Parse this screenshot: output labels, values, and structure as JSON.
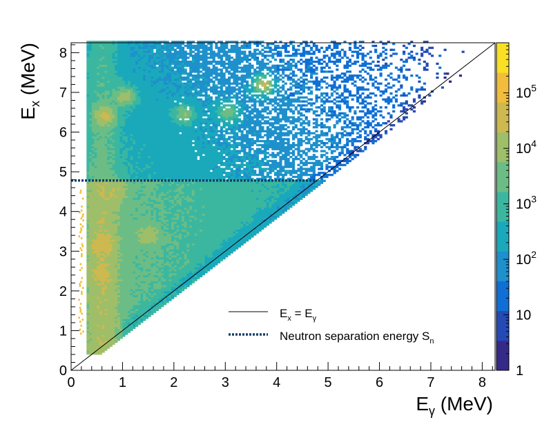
{
  "chart_data": {
    "type": "heatmap",
    "title": "",
    "x_axis": {
      "label_main": "E",
      "label_sub": "γ",
      "label_unit": " (MeV)",
      "range": [
        0,
        8.25
      ],
      "ticks": [
        "0",
        "1",
        "2",
        "3",
        "4",
        "5",
        "6",
        "7",
        "8"
      ]
    },
    "y_axis": {
      "label_main": "E",
      "label_sub": "x",
      "label_unit": " (MeV)",
      "range": [
        0,
        8.25
      ],
      "ticks": [
        "0",
        "1",
        "2",
        "3",
        "4",
        "5",
        "6",
        "7",
        "8"
      ]
    },
    "z_axis": {
      "scale": "log",
      "range": [
        1,
        800000
      ],
      "tick_labels": [
        {
          "base": "1",
          "exp": ""
        },
        {
          "base": "10",
          "exp": ""
        },
        {
          "base": "10",
          "exp": "2"
        },
        {
          "base": "10",
          "exp": "3"
        },
        {
          "base": "10",
          "exp": "4"
        },
        {
          "base": "10",
          "exp": "5"
        }
      ]
    },
    "colors": {
      "palette": [
        "#352a87",
        "#254ab5",
        "#0f6fd5",
        "#1e90cc",
        "#1aa9bb",
        "#3bb7a0",
        "#6cbd85",
        "#9fbe69",
        "#cdb94f",
        "#f1bd3a",
        "#f9e024"
      ],
      "diagonal_line": "#000000",
      "sn_line": "#0d3f6b"
    },
    "lines": {
      "diagonal": {
        "from": [
          0,
          0
        ],
        "to": [
          8.25,
          8.25
        ]
      },
      "neutron_separation_energy_MeV": 4.78
    },
    "data_region": {
      "ex_min": 0.4,
      "eg_min": 0.3,
      "upper_bound": "Ex >= Egamma - 0.1"
    },
    "hotspots": [
      {
        "eg": 0.65,
        "ex": 6.4,
        "level": 4.5
      },
      {
        "eg": 1.05,
        "ex": 6.9,
        "level": 4.2
      },
      {
        "eg": 2.2,
        "ex": 6.45,
        "level": 3.8
      },
      {
        "eg": 3.05,
        "ex": 6.5,
        "level": 3.6
      },
      {
        "eg": 3.75,
        "ex": 7.2,
        "level": 4.3
      },
      {
        "eg": 0.85,
        "ex": 4.5,
        "level": 4.3
      },
      {
        "eg": 0.6,
        "ex": 3.2,
        "level": 4.7
      },
      {
        "eg": 1.5,
        "ex": 3.4,
        "level": 4.2
      },
      {
        "eg": 0.6,
        "ex": 1.3,
        "level": 4.0
      },
      {
        "eg": 0.6,
        "ex": 2.4,
        "level": 4.5
      }
    ],
    "legend": {
      "position": "bottom-right inside plot",
      "entries": [
        {
          "label_main": "E",
          "label_sub1": "x",
          "label_mid": " = E",
          "label_sub2": "γ",
          "style": "solid"
        },
        {
          "label_main": "Neutron separation energy S",
          "label_sub1": "n",
          "label_mid": "",
          "label_sub2": "",
          "style": "dotted"
        }
      ]
    }
  }
}
